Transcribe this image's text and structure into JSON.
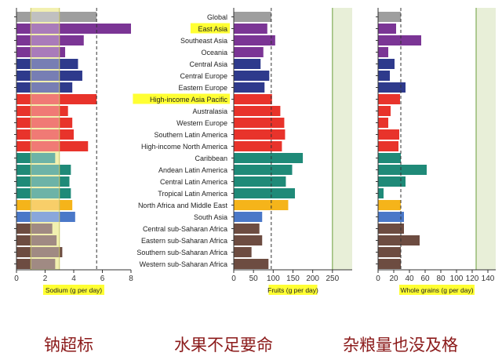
{
  "palette": {
    "global": "#9e9e9e",
    "asia": "#7b3595",
    "central_europe_asia": "#2e3a8c",
    "high_income": "#e8332b",
    "latin_america": "#1f8a78",
    "mena": "#f5b41a",
    "south_asia": "#4a78c8",
    "ssa": "#6d4c41",
    "highlight": "#ffff33",
    "optimal_band": "#e8efd8",
    "optimal_line": "#6a9e3a",
    "sodium_band": "#f2f0b0"
  },
  "region_labels": [
    {
      "text": "Global",
      "highlight": false
    },
    {
      "text": "East Asia",
      "highlight": true
    },
    {
      "text": "Southeast Asia",
      "highlight": false
    },
    {
      "text": "Oceania",
      "highlight": false
    },
    {
      "text": "Central Asia",
      "highlight": false
    },
    {
      "text": "Central Europe",
      "highlight": false
    },
    {
      "text": "Eastern Europe",
      "highlight": false
    },
    {
      "text": "High-income Asia Pacific",
      "highlight": true
    },
    {
      "text": "Australasia",
      "highlight": false
    },
    {
      "text": "Western Europe",
      "highlight": false
    },
    {
      "text": "Southern Latin America",
      "highlight": false
    },
    {
      "text": "High-income North America",
      "highlight": false
    },
    {
      "text": "Caribbean",
      "highlight": false
    },
    {
      "text": "Andean Latin America",
      "highlight": false
    },
    {
      "text": "Central Latin America",
      "highlight": false
    },
    {
      "text": "Tropical Latin America",
      "highlight": false
    },
    {
      "text": "North Africa and Middle East",
      "highlight": false
    },
    {
      "text": "South Asia",
      "highlight": false
    },
    {
      "text": "Central sub-Saharan Africa",
      "highlight": false
    },
    {
      "text": "Eastern sub-Saharan Africa",
      "highlight": false
    },
    {
      "text": "Southern sub-Saharan Africa",
      "highlight": false
    },
    {
      "text": "Western sub-Saharan Africa",
      "highlight": false
    }
  ],
  "region_groups": [
    "global",
    "asia",
    "asia",
    "asia",
    "central_europe_asia",
    "central_europe_asia",
    "central_europe_asia",
    "high_income",
    "high_income",
    "high_income",
    "high_income",
    "high_income",
    "latin_america",
    "latin_america",
    "latin_america",
    "latin_america",
    "mena",
    "south_asia",
    "ssa",
    "ssa",
    "ssa",
    "ssa"
  ],
  "chart_data": [
    {
      "type": "bar",
      "orientation": "horizontal",
      "xlabel": "Sodium (g per day)",
      "xlim": [
        0,
        8
      ],
      "xticks": [
        0,
        2,
        4,
        6,
        8
      ],
      "optimal_range": [
        1,
        3
      ],
      "reference_line": 5.6,
      "values": [
        5.6,
        8.0,
        4.7,
        3.4,
        4.3,
        4.6,
        3.9,
        5.6,
        3.6,
        3.9,
        4.0,
        5.0,
        2.7,
        3.8,
        3.7,
        3.8,
        3.9,
        4.1,
        2.5,
        2.8,
        3.2,
        2.7
      ]
    },
    {
      "type": "bar",
      "orientation": "horizontal",
      "xlabel": "Fruits (g per day)",
      "xlim": [
        0,
        300
      ],
      "xticks": [
        0,
        50,
        100,
        150,
        200,
        250
      ],
      "optimal_range": [
        250,
        300
      ],
      "reference_line": 95,
      "values": [
        95,
        85,
        105,
        75,
        68,
        90,
        78,
        97,
        118,
        128,
        130,
        122,
        175,
        148,
        132,
        155,
        138,
        72,
        65,
        72,
        45,
        88
      ]
    },
    {
      "type": "bar",
      "orientation": "horizontal",
      "xlabel": "Whole grains (g per day)",
      "xlim": [
        0,
        150
      ],
      "xticks": [
        0,
        20,
        40,
        60,
        80,
        100,
        120,
        140
      ],
      "optimal_range": [
        125,
        150
      ],
      "reference_line": 29,
      "values": [
        29,
        23,
        55,
        13,
        21,
        15,
        35,
        28,
        16,
        13,
        27,
        26,
        29,
        62,
        35,
        7,
        29,
        33,
        33,
        53,
        29,
        29
      ]
    }
  ],
  "captions": [
    "钠超标",
    "水果不足要命",
    "杂粮量也没及格"
  ]
}
